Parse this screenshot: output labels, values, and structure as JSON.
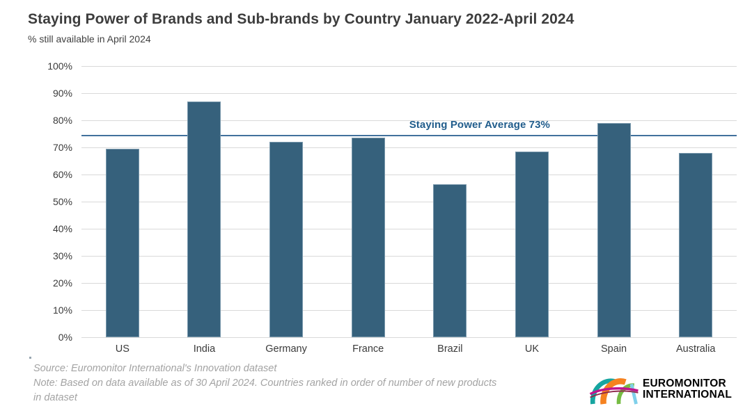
{
  "header": {
    "title": "Staying Power of Brands and Sub-brands by Country January 2022-April 2024",
    "subtitle": "% still available in April 2024"
  },
  "chart_data": {
    "type": "bar",
    "title": "Staying Power of Brands and Sub-brands by Country January 2022-April 2024",
    "subtitle": "% still available in April 2024",
    "categories": [
      "US",
      "India",
      "Germany",
      "France",
      "Brazil",
      "UK",
      "Spain",
      "Australia"
    ],
    "values": [
      69.5,
      87,
      72,
      73.5,
      56.5,
      68.5,
      79,
      68
    ],
    "xlabel": "",
    "ylabel": "% still available in April 2024",
    "ylim": [
      0,
      100
    ],
    "ytick_step": 10,
    "ytick_suffix": "%",
    "grid": "horizontal",
    "legend": "none",
    "average_line": {
      "label": "Staying Power Average 73%",
      "value": 73,
      "display_position": 74.4
    },
    "colors": {
      "bar": "#36617c",
      "average_line": "#41719c",
      "average_label": "#215d8c",
      "gridline": "#d9d9d9",
      "axis_text": "#3a3a3a"
    }
  },
  "footer": {
    "lines": [
      "Source: Euromonitor International's Innovation dataset",
      "Note: Based on data available as of 30 April 2024. Countries ranked in order of number of new products",
      "in dataset"
    ]
  },
  "logo": {
    "line1": "EUROMONITOR",
    "line2": "INTERNATIONAL",
    "colors": {
      "teal": "#16a5a0",
      "orange": "#f58220",
      "green": "#76bc43",
      "magenta": "#c0148c",
      "dark_red": "#8e2a4b",
      "light_blue": "#7fd0ea",
      "text": "#1c1c1c"
    }
  }
}
